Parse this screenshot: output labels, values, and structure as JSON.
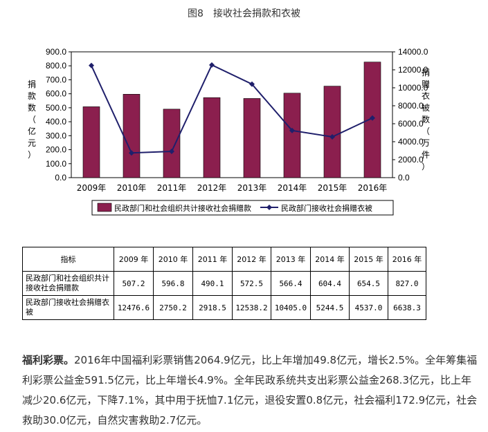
{
  "figure_title": "图8　接收社会捐款和衣被",
  "chart_data": {
    "type": "bar+line",
    "title": "图8　接收社会捐款和衣被",
    "categories": [
      "2009年",
      "2010年",
      "2011年",
      "2012年",
      "2013年",
      "2014年",
      "2015年",
      "2016年"
    ],
    "series": [
      {
        "name": "民政部门和社会组织共计接收社会捐赠款",
        "type": "bar",
        "axis": "left",
        "color": "#8b1f4e",
        "values": [
          507.2,
          596.8,
          490.1,
          572.5,
          566.4,
          604.4,
          654.5,
          827.0
        ]
      },
      {
        "name": "民政部门接收社会捐赠衣被",
        "type": "line",
        "axis": "right",
        "color": "#1f1f6b",
        "values": [
          12476.6,
          2750.2,
          2918.5,
          12538.2,
          10405.0,
          5244.5,
          4537.0,
          6638.3
        ]
      }
    ],
    "ylabel_left": "捐款数（亿元）",
    "ylabel_right": "捐赠衣被数（万件）",
    "ylim_left": [
      0,
      900
    ],
    "ylim_right": [
      0,
      14000
    ],
    "yticks_left": [
      "0.0",
      "100.0",
      "200.0",
      "300.0",
      "400.0",
      "500.0",
      "600.0",
      "700.0",
      "800.0",
      "900.0"
    ],
    "yticks_right": [
      "0.0",
      "2000.0",
      "4000.0",
      "6000.0",
      "8000.0",
      "10000.0",
      "12000.0",
      "14000.0"
    ],
    "legend_position": "bottom",
    "grid": false
  },
  "table": {
    "header_label": "指标",
    "years": [
      "2009 年",
      "2010 年",
      "2011 年",
      "2012 年",
      "2013 年",
      "2014 年",
      "2015 年",
      "2016 年"
    ],
    "rows": [
      {
        "name": "民政部门和社会组织共计接收社会捐赠款",
        "values": [
          "507.2",
          "596.8",
          "490.1",
          "572.5",
          "566.4",
          "604.4",
          "654.5",
          "827.0"
        ]
      },
      {
        "name": "民政部门接收社会捐赠衣被",
        "values": [
          "12476.6",
          "2750.2",
          "2918.5",
          "12538.2",
          "10405.0",
          "5244.5",
          "4537.0",
          "6638.3"
        ]
      }
    ]
  },
  "paragraph": {
    "lead": "福利彩票。",
    "text": "2016年中国福利彩票销售2064.9亿元，比上年增加49.8亿元，增长2.5%。全年筹集福利彩票公益金591.5亿元，比上年增长4.9%。全年民政系统共支出彩票公益金268.3亿元，比上年减少20.6亿元，下降7.1%，其中用于抚恤7.1亿元，退役安置0.8亿元，社会福利172.9亿元，社会救助30.0亿元，自然灾害救助2.7亿元。"
  }
}
